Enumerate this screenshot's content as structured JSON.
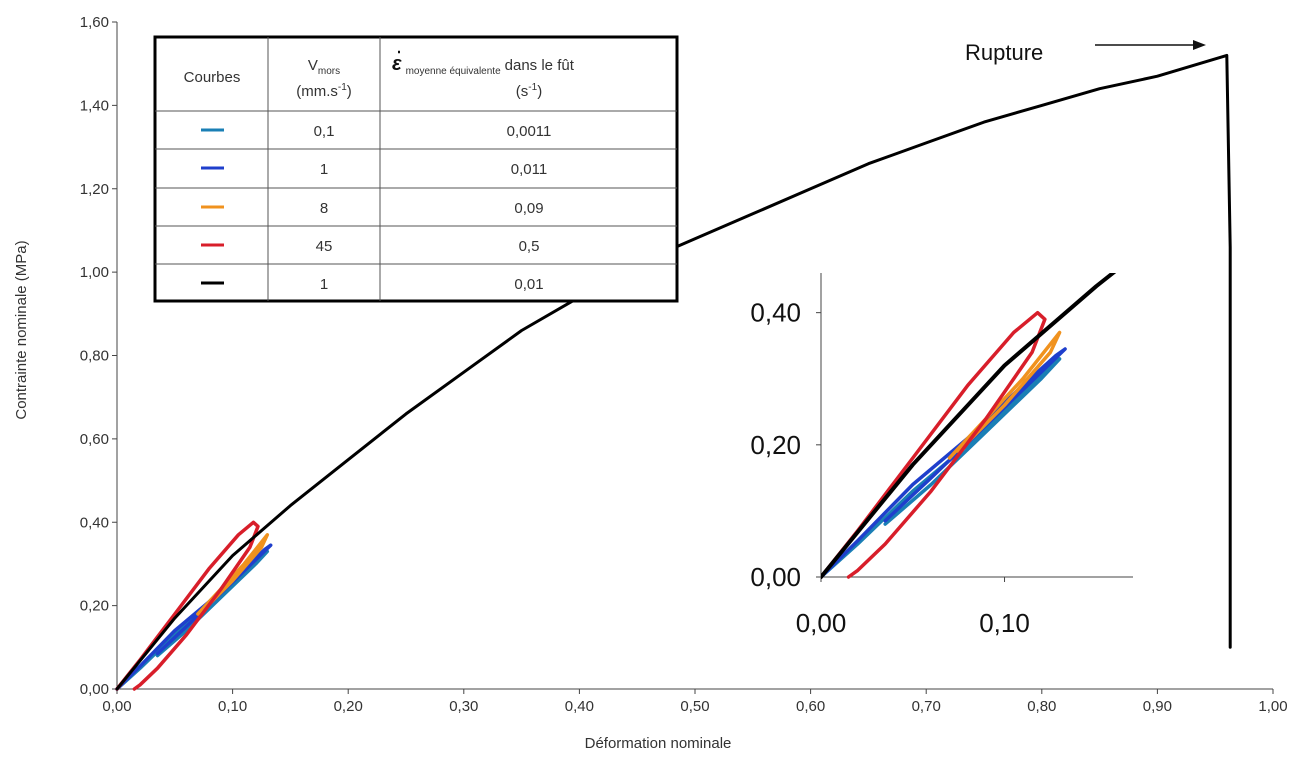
{
  "chart_data": {
    "type": "line",
    "xlabel": "Déformation nominale",
    "ylabel": "Contrainte nominale (MPa)",
    "xlim": [
      0,
      1
    ],
    "ylim": [
      0,
      1.6
    ],
    "x_ticks": [
      "0,00",
      "0,10",
      "0,20",
      "0,30",
      "0,40",
      "0,50",
      "0,60",
      "0,70",
      "0,80",
      "0,90",
      "1,00"
    ],
    "y_ticks": [
      "0,00",
      "0,20",
      "0,40",
      "0,60",
      "0,80",
      "1,00",
      "1,20",
      "1,40",
      "1,60"
    ],
    "grid": false,
    "annotation": {
      "text": "Rupture"
    },
    "legend_table": {
      "headers": {
        "col1": "Courbes",
        "col2_main": "V",
        "col2_sub": "mors",
        "col2_unit_main": "(mm.s",
        "col2_unit_sup": "-1",
        "col2_unit_end": ")",
        "col3_symbol": "ε",
        "col3_sub": "moyenne équivalente",
        "col3_main": "dans le fût",
        "col3_unit_main": "(s",
        "col3_unit_sup": "-1",
        "col3_unit_end": ")"
      },
      "rows": [
        {
          "color": "#1a7fb5",
          "v": "0,1",
          "eps": "0,0011"
        },
        {
          "color": "#1f3fcc",
          "v": "1",
          "eps": "0,011"
        },
        {
          "color": "#f0921e",
          "v": "8",
          "eps": "0,09"
        },
        {
          "color": "#d81e2a",
          "v": "45",
          "eps": "0,5"
        },
        {
          "color": "#000000",
          "v": "1",
          "eps": "0,01"
        }
      ]
    },
    "inset": {
      "xlim": [
        0,
        0.17
      ],
      "ylim": [
        0,
        0.46
      ],
      "x_ticks": [
        "0,00",
        "0,10"
      ],
      "y_ticks": [
        "0,00",
        "0,20",
        "0,40"
      ]
    },
    "series": [
      {
        "color": "#1a7fb5",
        "x": [
          0,
          0.02,
          0.05,
          0.08,
          0.11,
          0.125,
          0.13,
          0.12,
          0.09,
          0.06,
          0.035
        ],
        "y": [
          0,
          0.05,
          0.13,
          0.2,
          0.28,
          0.32,
          0.33,
          0.3,
          0.22,
          0.14,
          0.08
        ]
      },
      {
        "color": "#1f3fcc",
        "x": [
          0,
          0.02,
          0.05,
          0.08,
          0.11,
          0.128,
          0.133,
          0.12,
          0.09,
          0.06,
          0.035
        ],
        "y": [
          0,
          0.055,
          0.14,
          0.21,
          0.29,
          0.335,
          0.345,
          0.31,
          0.23,
          0.15,
          0.085
        ]
      },
      {
        "color": "#f0921e",
        "x": [
          0.07,
          0.09,
          0.11,
          0.13,
          0.125,
          0.1,
          0.075
        ],
        "y": [
          0.18,
          0.24,
          0.3,
          0.37,
          0.34,
          0.26,
          0.19
        ]
      },
      {
        "color": "#d81e2a",
        "x": [
          0,
          0.02,
          0.05,
          0.08,
          0.105,
          0.118,
          0.122,
          0.115,
          0.09,
          0.06,
          0.035,
          0.02,
          0.015
        ],
        "y": [
          0,
          0.07,
          0.18,
          0.29,
          0.37,
          0.4,
          0.39,
          0.34,
          0.24,
          0.13,
          0.05,
          0.01,
          0
        ]
      },
      {
        "color": "#000000",
        "x": [
          0,
          0.05,
          0.1,
          0.15,
          0.2,
          0.25,
          0.3,
          0.35,
          0.4,
          0.45,
          0.5,
          0.55,
          0.6,
          0.65,
          0.7,
          0.75,
          0.8,
          0.85,
          0.9,
          0.96,
          0.96,
          0.963,
          0.963
        ],
        "y": [
          0,
          0.17,
          0.32,
          0.44,
          0.55,
          0.66,
          0.76,
          0.86,
          0.94,
          1.02,
          1.08,
          1.14,
          1.2,
          1.26,
          1.31,
          1.36,
          1.4,
          1.44,
          1.47,
          1.52,
          1.52,
          1.06,
          0.1
        ]
      }
    ]
  }
}
